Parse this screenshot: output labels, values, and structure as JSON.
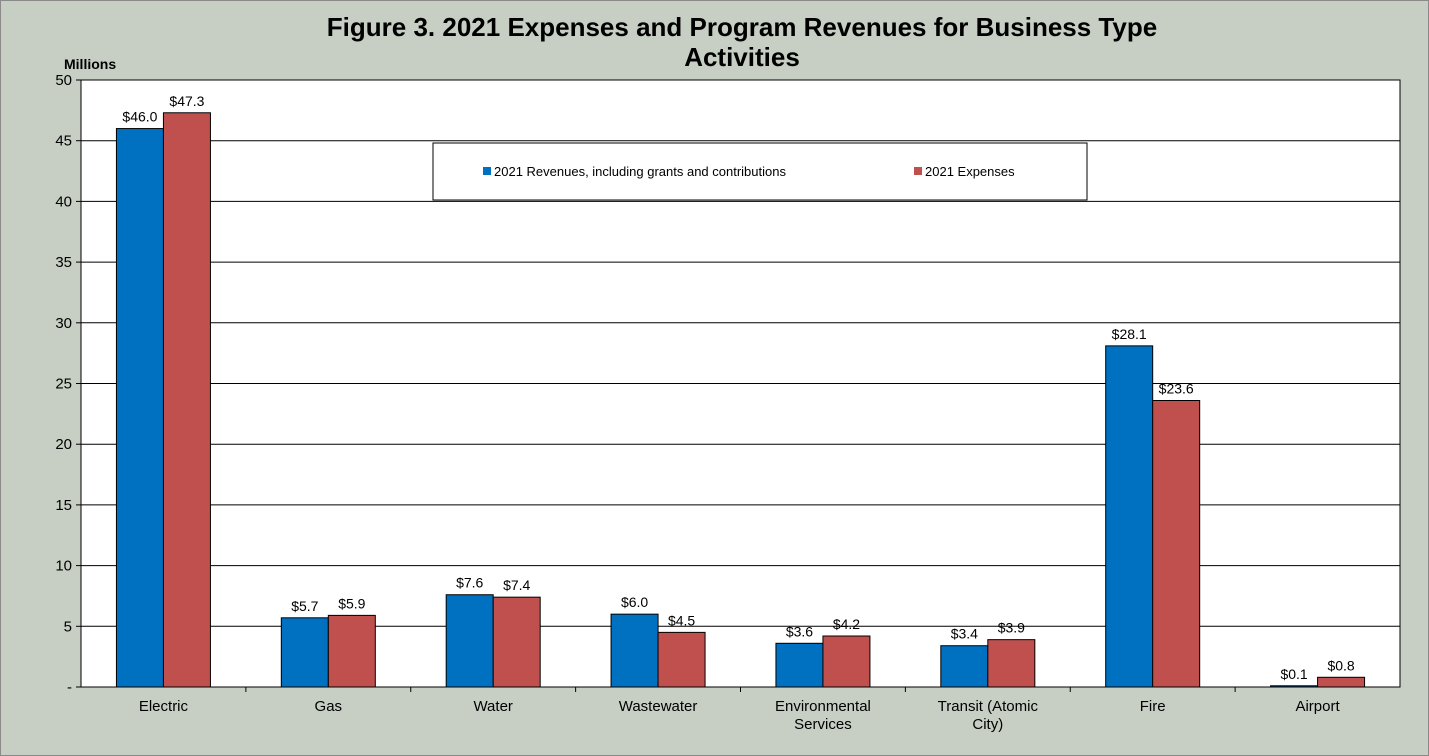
{
  "chart_data": {
    "type": "bar",
    "title": "Figure 3. 2021 Expenses and Program Revenues for Business Type\nActivities",
    "ylabel": "Millions",
    "xlabel": "",
    "ylim": [
      0,
      50
    ],
    "yticks": [
      0,
      5,
      10,
      15,
      20,
      25,
      30,
      35,
      40,
      45,
      50
    ],
    "ytick_labels": [
      "-",
      "5",
      "10",
      "15",
      "20",
      "25",
      "30",
      "35",
      "40",
      "45",
      "50"
    ],
    "grid": true,
    "legend": "top-center",
    "categories": [
      [
        "Electric"
      ],
      [
        "Gas"
      ],
      [
        "Water"
      ],
      [
        "Wastewater"
      ],
      [
        "Environmental",
        "Services"
      ],
      [
        "Transit (Atomic",
        "City)"
      ],
      [
        "Fire"
      ],
      [
        "Airport"
      ]
    ],
    "series": [
      {
        "name": "2021 Revenues, including grants and contributions",
        "color": "#0070c0",
        "values": [
          46.0,
          5.7,
          7.6,
          6.0,
          3.6,
          3.4,
          28.1,
          0.1
        ],
        "labels": [
          "$46.0",
          "$5.7",
          "$7.6",
          "$6.0",
          "$3.6",
          "$3.4",
          "$28.1",
          "$0.1"
        ]
      },
      {
        "name": "2021 Expenses",
        "color": "#c0504d",
        "values": [
          47.3,
          5.9,
          7.4,
          4.5,
          4.2,
          3.9,
          23.6,
          0.8
        ],
        "labels": [
          "$47.3",
          "$5.9",
          "$7.4",
          "$4.5",
          "$4.2",
          "$3.9",
          "$23.6",
          "$0.8"
        ]
      }
    ]
  }
}
